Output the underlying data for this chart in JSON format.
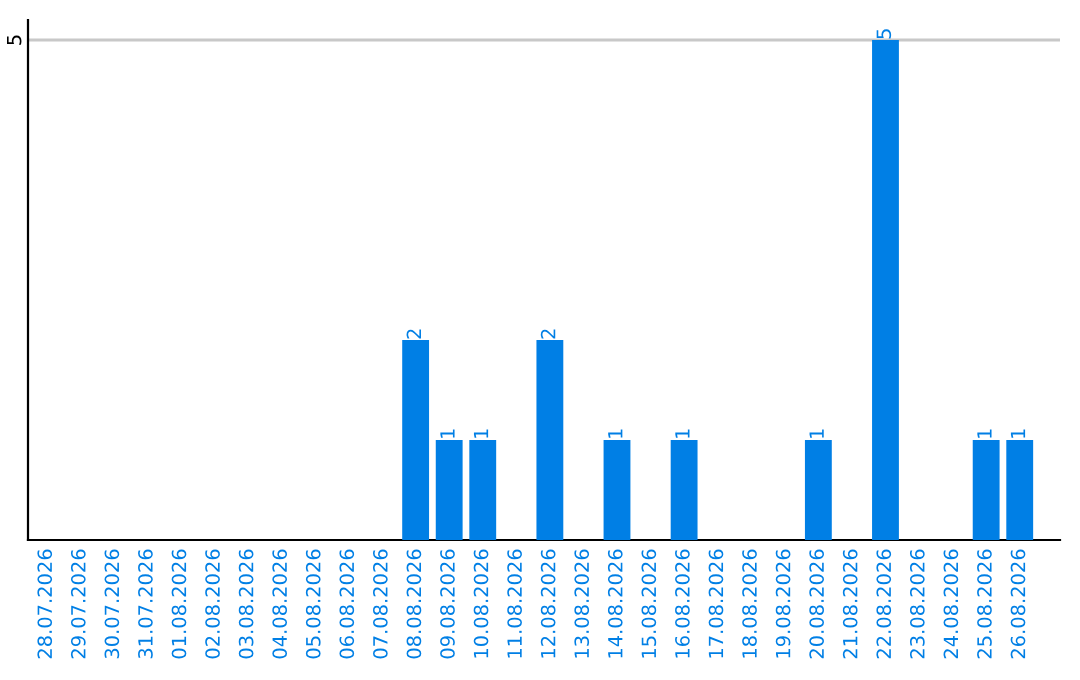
{
  "chart_data": {
    "type": "bar",
    "categories": [
      "28.07.2026",
      "29.07.2026",
      "30.07.2026",
      "31.07.2026",
      "01.08.2026",
      "02.08.2026",
      "03.08.2026",
      "04.08.2026",
      "05.08.2026",
      "06.08.2026",
      "07.08.2026",
      "08.08.2026",
      "09.08.2026",
      "10.08.2026",
      "11.08.2026",
      "12.08.2026",
      "13.08.2026",
      "14.08.2026",
      "15.08.2026",
      "16.08.2026",
      "17.08.2026",
      "18.08.2026",
      "19.08.2026",
      "20.08.2026",
      "21.08.2026",
      "22.08.2026",
      "23.08.2026",
      "24.08.2026",
      "25.08.2026",
      "26.08.2026"
    ],
    "values": [
      0,
      0,
      0,
      0,
      0,
      0,
      0,
      0,
      0,
      0,
      0,
      2,
      1,
      1,
      0,
      2,
      0,
      1,
      0,
      1,
      0,
      0,
      0,
      1,
      0,
      5,
      0,
      0,
      1,
      1
    ],
    "value_labels": [
      null,
      null,
      null,
      null,
      null,
      null,
      null,
      null,
      null,
      null,
      null,
      "2",
      "1",
      "1",
      null,
      "2",
      null,
      "1",
      null,
      "1",
      null,
      null,
      null,
      "1",
      null,
      "5",
      null,
      null,
      "1",
      "1"
    ],
    "color": "#007fe5",
    "ylim": [
      0,
      5.2
    ],
    "yticks": [
      5
    ],
    "grid": "y",
    "legend": false
  }
}
